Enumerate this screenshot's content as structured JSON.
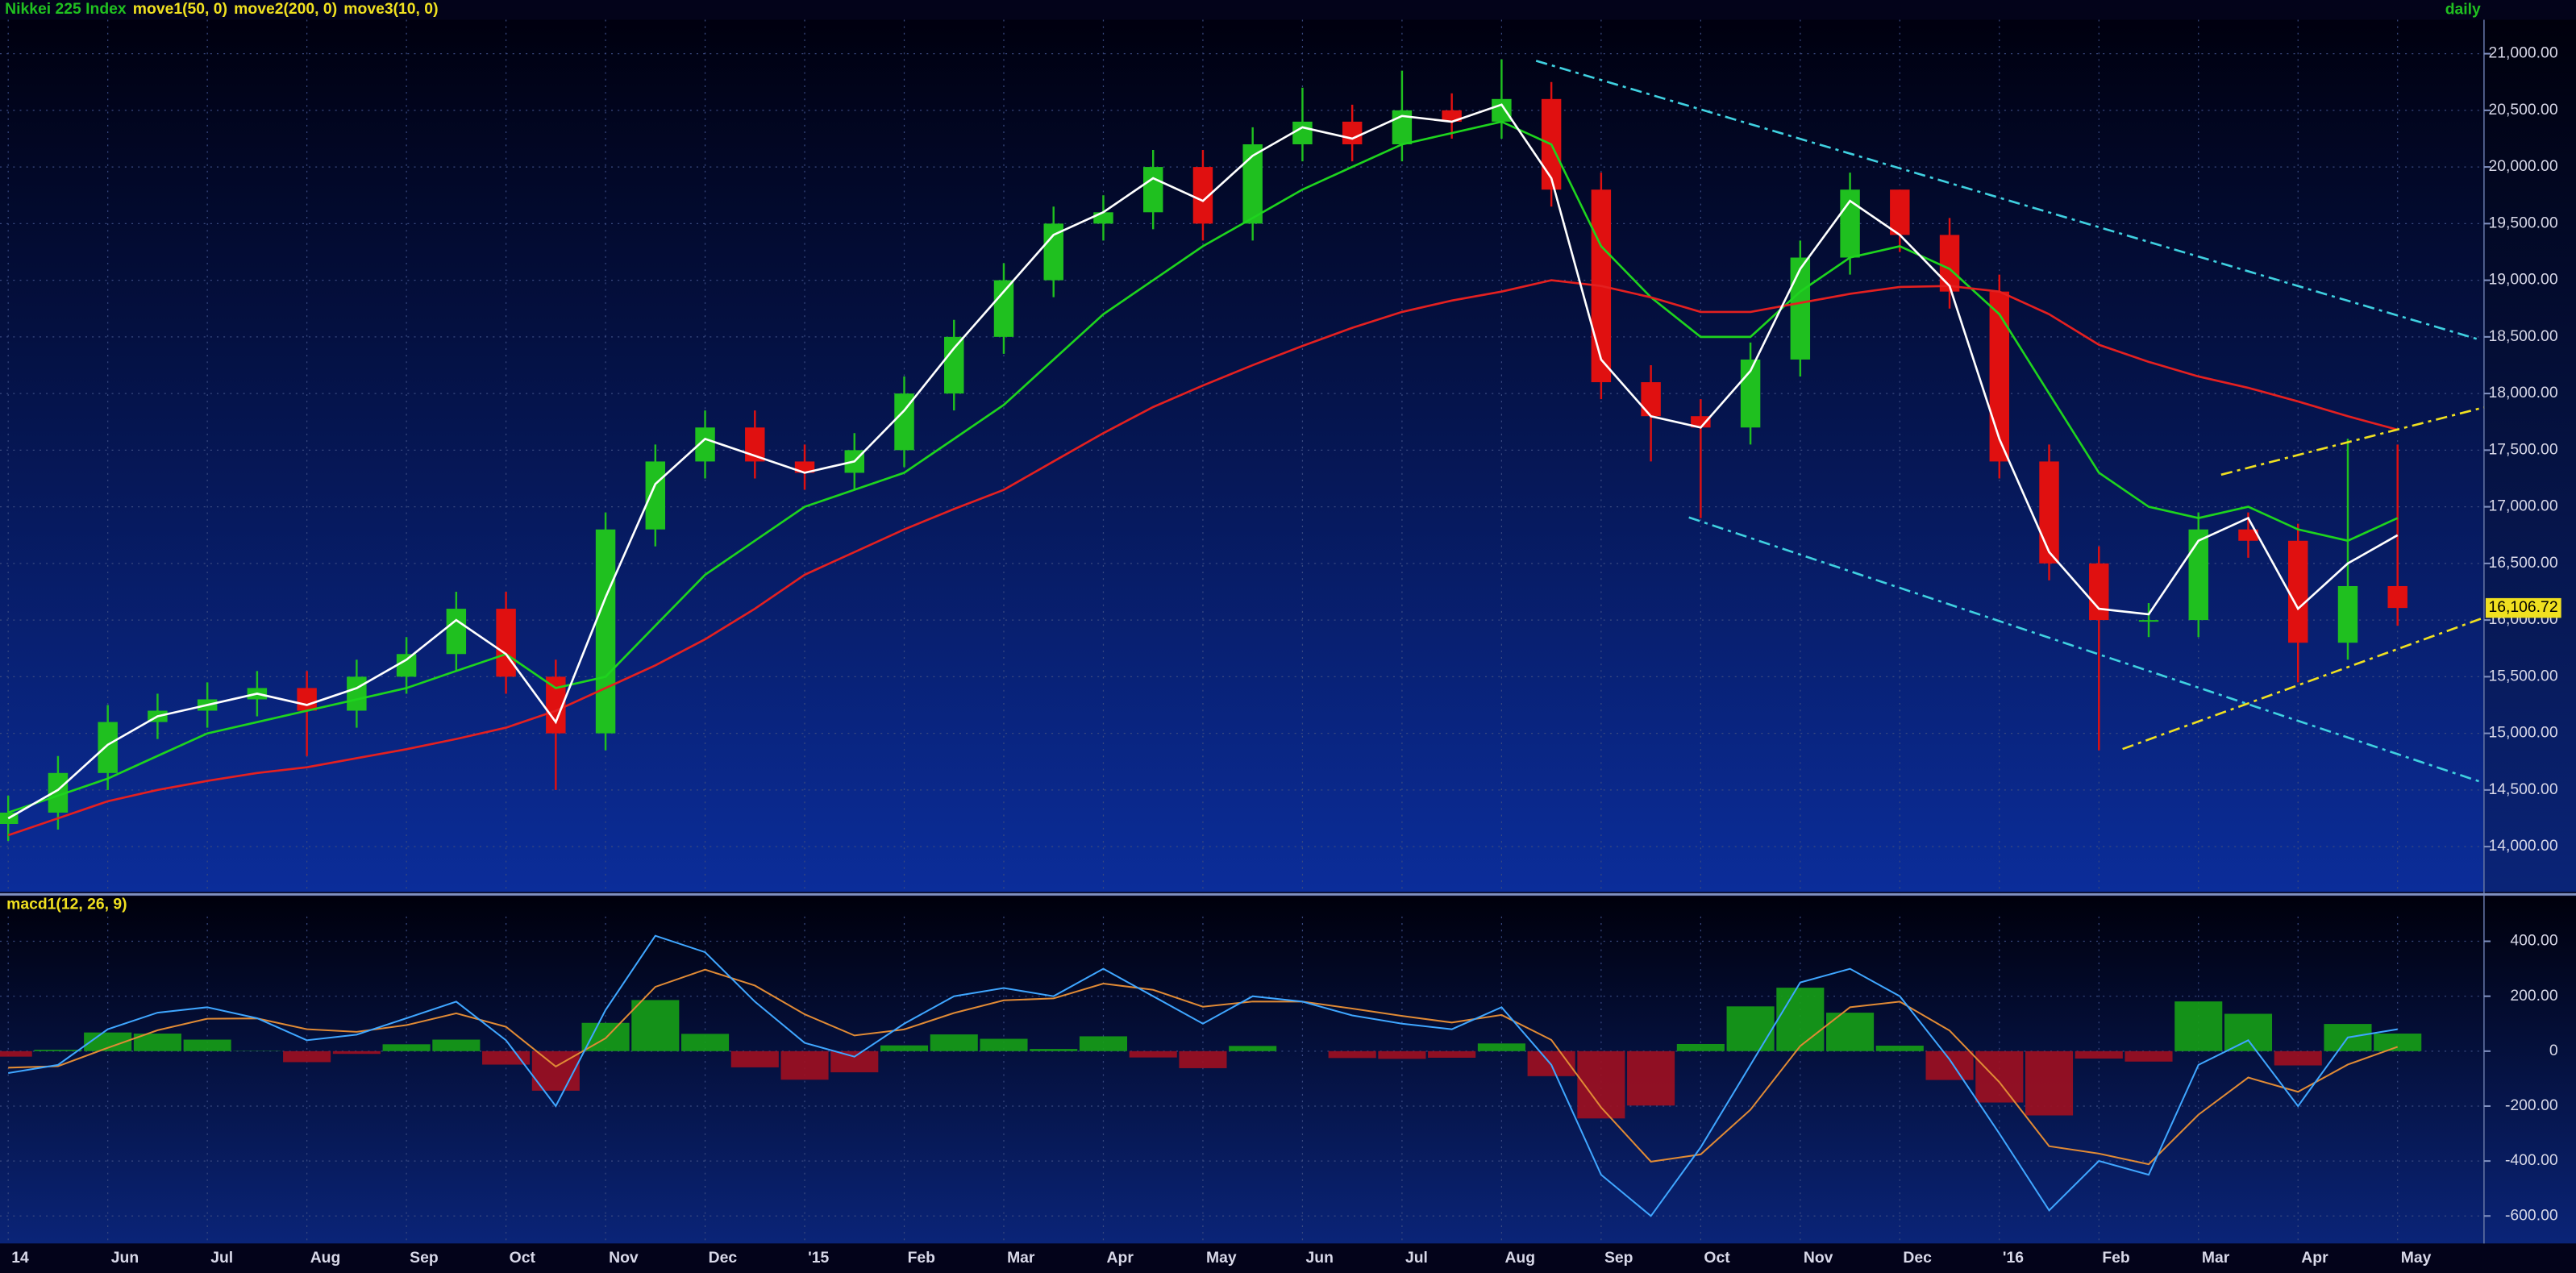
{
  "chart_data": [
    {
      "type": "candlestick",
      "title": "Nikkei 225 Index",
      "interval": "daily",
      "open": [
        14200,
        14300,
        14650,
        15100,
        15200,
        15300,
        15400,
        15200,
        15500,
        15700,
        16100,
        15500,
        15000,
        16800,
        17400,
        17700,
        17400,
        17300,
        17500,
        18000,
        18500,
        19000,
        19500,
        19600,
        20000,
        19500,
        20200,
        20400,
        20200,
        20500,
        20400,
        20600,
        19800,
        18100,
        17800,
        17700,
        18300,
        19200,
        19800,
        19400,
        18900,
        17400,
        16500,
        16000,
        16000,
        16800,
        16700,
        15800,
        16300
      ],
      "high": [
        14450,
        14800,
        15250,
        15350,
        15450,
        15550,
        15550,
        15650,
        15850,
        16250,
        16250,
        15650,
        16950,
        17550,
        17850,
        17850,
        17550,
        17650,
        18150,
        18650,
        19150,
        19650,
        19750,
        20150,
        20150,
        20350,
        20700,
        20550,
        20850,
        20650,
        20950,
        20750,
        19950,
        18250,
        17950,
        18450,
        19350,
        19950,
        19800,
        19550,
        19050,
        17550,
        16650,
        16150,
        16950,
        16950,
        16850,
        17600,
        17550
      ],
      "low": [
        14050,
        14150,
        14500,
        14950,
        15050,
        15150,
        14800,
        15050,
        15350,
        15550,
        15350,
        14500,
        14850,
        16650,
        17250,
        17250,
        17150,
        17150,
        17350,
        17850,
        18350,
        18850,
        19350,
        19450,
        19350,
        19350,
        20050,
        20050,
        20050,
        20250,
        20250,
        19650,
        17950,
        17400,
        16900,
        17550,
        18150,
        19050,
        19250,
        18750,
        17250,
        16350,
        14850,
        15850,
        15850,
        16550,
        15450,
        15650,
        15950
      ],
      "close": [
        14300,
        14650,
        15100,
        15200,
        15300,
        15400,
        15200,
        15500,
        15700,
        16100,
        15500,
        15000,
        16800,
        17400,
        17700,
        17400,
        17300,
        17500,
        18000,
        18500,
        19000,
        19500,
        19600,
        20000,
        19500,
        20200,
        20400,
        20200,
        20500,
        20400,
        20600,
        19800,
        18100,
        17800,
        17700,
        18300,
        19200,
        19800,
        19400,
        18900,
        17400,
        16500,
        16000,
        16000,
        16800,
        16700,
        15800,
        16300,
        16106.72
      ],
      "up_color": "#1fc01f",
      "down_color": "#e01010",
      "series": [
        {
          "name": "move1(50, 0)",
          "color": "#1ed41e",
          "values": [
            14300,
            14450,
            14600,
            14800,
            15000,
            15100,
            15200,
            15300,
            15400,
            15550,
            15700,
            15400,
            15500,
            15950,
            16400,
            16700,
            17000,
            17150,
            17300,
            17600,
            17900,
            18300,
            18700,
            19000,
            19300,
            19550,
            19800,
            20000,
            20200,
            20300,
            20400,
            20200,
            19300,
            18850,
            18500,
            18500,
            18900,
            19200,
            19300,
            19100,
            18700,
            18000,
            17300,
            17000,
            16900,
            17000,
            16800,
            16700,
            16900
          ]
        },
        {
          "name": "move2(200, 0)",
          "color": "#e42020",
          "values": [
            14100,
            14250,
            14400,
            14500,
            14580,
            14650,
            14700,
            14780,
            14860,
            14950,
            15050,
            15200,
            15400,
            15600,
            15830,
            16100,
            16400,
            16600,
            16800,
            16980,
            17150,
            17400,
            17650,
            17880,
            18070,
            18250,
            18420,
            18580,
            18720,
            18820,
            18900,
            19000,
            18950,
            18850,
            18720,
            18720,
            18800,
            18880,
            18940,
            18950,
            18900,
            18700,
            18430,
            18280,
            18150,
            18050,
            17930,
            17800,
            17680
          ]
        },
        {
          "name": "move3(10, 0)",
          "color": "#ffffff",
          "values": [
            14250,
            14500,
            14900,
            15150,
            15250,
            15350,
            15250,
            15400,
            15650,
            16000,
            15700,
            15100,
            16200,
            17200,
            17600,
            17450,
            17300,
            17400,
            17850,
            18400,
            18900,
            19400,
            19600,
            19900,
            19700,
            20100,
            20350,
            20250,
            20450,
            20400,
            20550,
            19900,
            18300,
            17800,
            17700,
            18200,
            19100,
            19700,
            19400,
            18950,
            17600,
            16600,
            16100,
            16050,
            16700,
            16900,
            16100,
            16500,
            16750
          ]
        }
      ],
      "last_price": {
        "value": 16106.72,
        "label": "16,106.72"
      },
      "ylim": [
        13600,
        21300
      ],
      "yticks": [
        {
          "value": 14000,
          "label": "14,000.00"
        },
        {
          "value": 14500,
          "label": "14,500.00"
        },
        {
          "value": 15000,
          "label": "15,000.00"
        },
        {
          "value": 15500,
          "label": "15,500.00"
        },
        {
          "value": 16000,
          "label": "16,000.00"
        },
        {
          "value": 16500,
          "label": "16,500.00"
        },
        {
          "value": 17000,
          "label": "17,000.00"
        },
        {
          "value": 17500,
          "label": "17,500.00"
        },
        {
          "value": 18000,
          "label": "18,000.00"
        },
        {
          "value": 18500,
          "label": "18,500.00"
        },
        {
          "value": 19000,
          "label": "19,000.00"
        },
        {
          "value": 19500,
          "label": "19,500.00"
        },
        {
          "value": 20000,
          "label": "20,000.00"
        },
        {
          "value": 20500,
          "label": "20,500.00"
        },
        {
          "value": 21000,
          "label": "21,000.00"
        }
      ],
      "grid": true
    },
    {
      "type": "macd",
      "title": "macd1(12, 26, 9)",
      "categories": [
        "14",
        null,
        "Jun",
        null,
        "Jul",
        null,
        "Aug",
        null,
        "Sep",
        null,
        "Oct",
        null,
        "Nov",
        null,
        "Dec",
        null,
        "'15",
        null,
        "Feb",
        null,
        "Mar",
        null,
        "Apr",
        null,
        "May",
        null,
        "Jun",
        null,
        "Jul",
        null,
        "Aug",
        null,
        "Sep",
        null,
        "Oct",
        null,
        "Nov",
        null,
        "Dec",
        null,
        "'16",
        null,
        "Feb",
        null,
        "Mar",
        null,
        "Apr",
        null,
        "May"
      ],
      "macd": {
        "color": "#3fa6ff",
        "values": [
          -80,
          -50,
          80,
          140,
          160,
          120,
          40,
          60,
          120,
          180,
          40,
          -200,
          150,
          420,
          360,
          180,
          30,
          -20,
          100,
          200,
          230,
          200,
          300,
          200,
          100,
          200,
          180,
          130,
          100,
          80,
          160,
          -50,
          -450,
          -600,
          -350,
          -50,
          250,
          300,
          200,
          -30,
          -300,
          -580,
          -400,
          -450,
          -50,
          40,
          -200,
          50,
          80
        ]
      },
      "signal": {
        "color": "#e08a35",
        "values": [
          -60,
          -55,
          12,
          76,
          118,
          119,
          80,
          70,
          95,
          138,
          89,
          -56,
          47,
          234,
          297,
          239,
          134,
          57,
          79,
          139,
          185,
          192,
          246,
          223,
          162,
          181,
          180,
          155,
          128,
          104,
          132,
          41,
          -205,
          -402,
          -376,
          -213,
          19,
          160,
          180,
          75,
          -113,
          -346,
          -373,
          -412,
          -231,
          -96,
          -148,
          -49,
          16
        ]
      },
      "histogram": {
        "up_color": "#16a016",
        "down_color": "#a01020",
        "values": [
          -20,
          5,
          68,
          64,
          42,
          1,
          -40,
          -10,
          25,
          42,
          -49,
          -144,
          103,
          186,
          63,
          -59,
          -104,
          -77,
          21,
          61,
          45,
          8,
          54,
          -23,
          -62,
          19,
          0,
          -25,
          -28,
          -24,
          28,
          -91,
          -245,
          -198,
          26,
          163,
          231,
          140,
          20,
          -105,
          -187,
          -234,
          -27,
          -38,
          181,
          136,
          -52,
          99,
          64
        ]
      },
      "ylim": [
        -700,
        490
      ],
      "yticks": [
        {
          "value": 400,
          "label": "400.00"
        },
        {
          "value": 200,
          "label": "200.00"
        },
        0,
        {
          "value": -200,
          "label": "-200.00"
        },
        {
          "value": -400,
          "label": "-400.00"
        },
        {
          "value": -600,
          "label": "-600.00"
        }
      ],
      "grid": true
    }
  ]
}
